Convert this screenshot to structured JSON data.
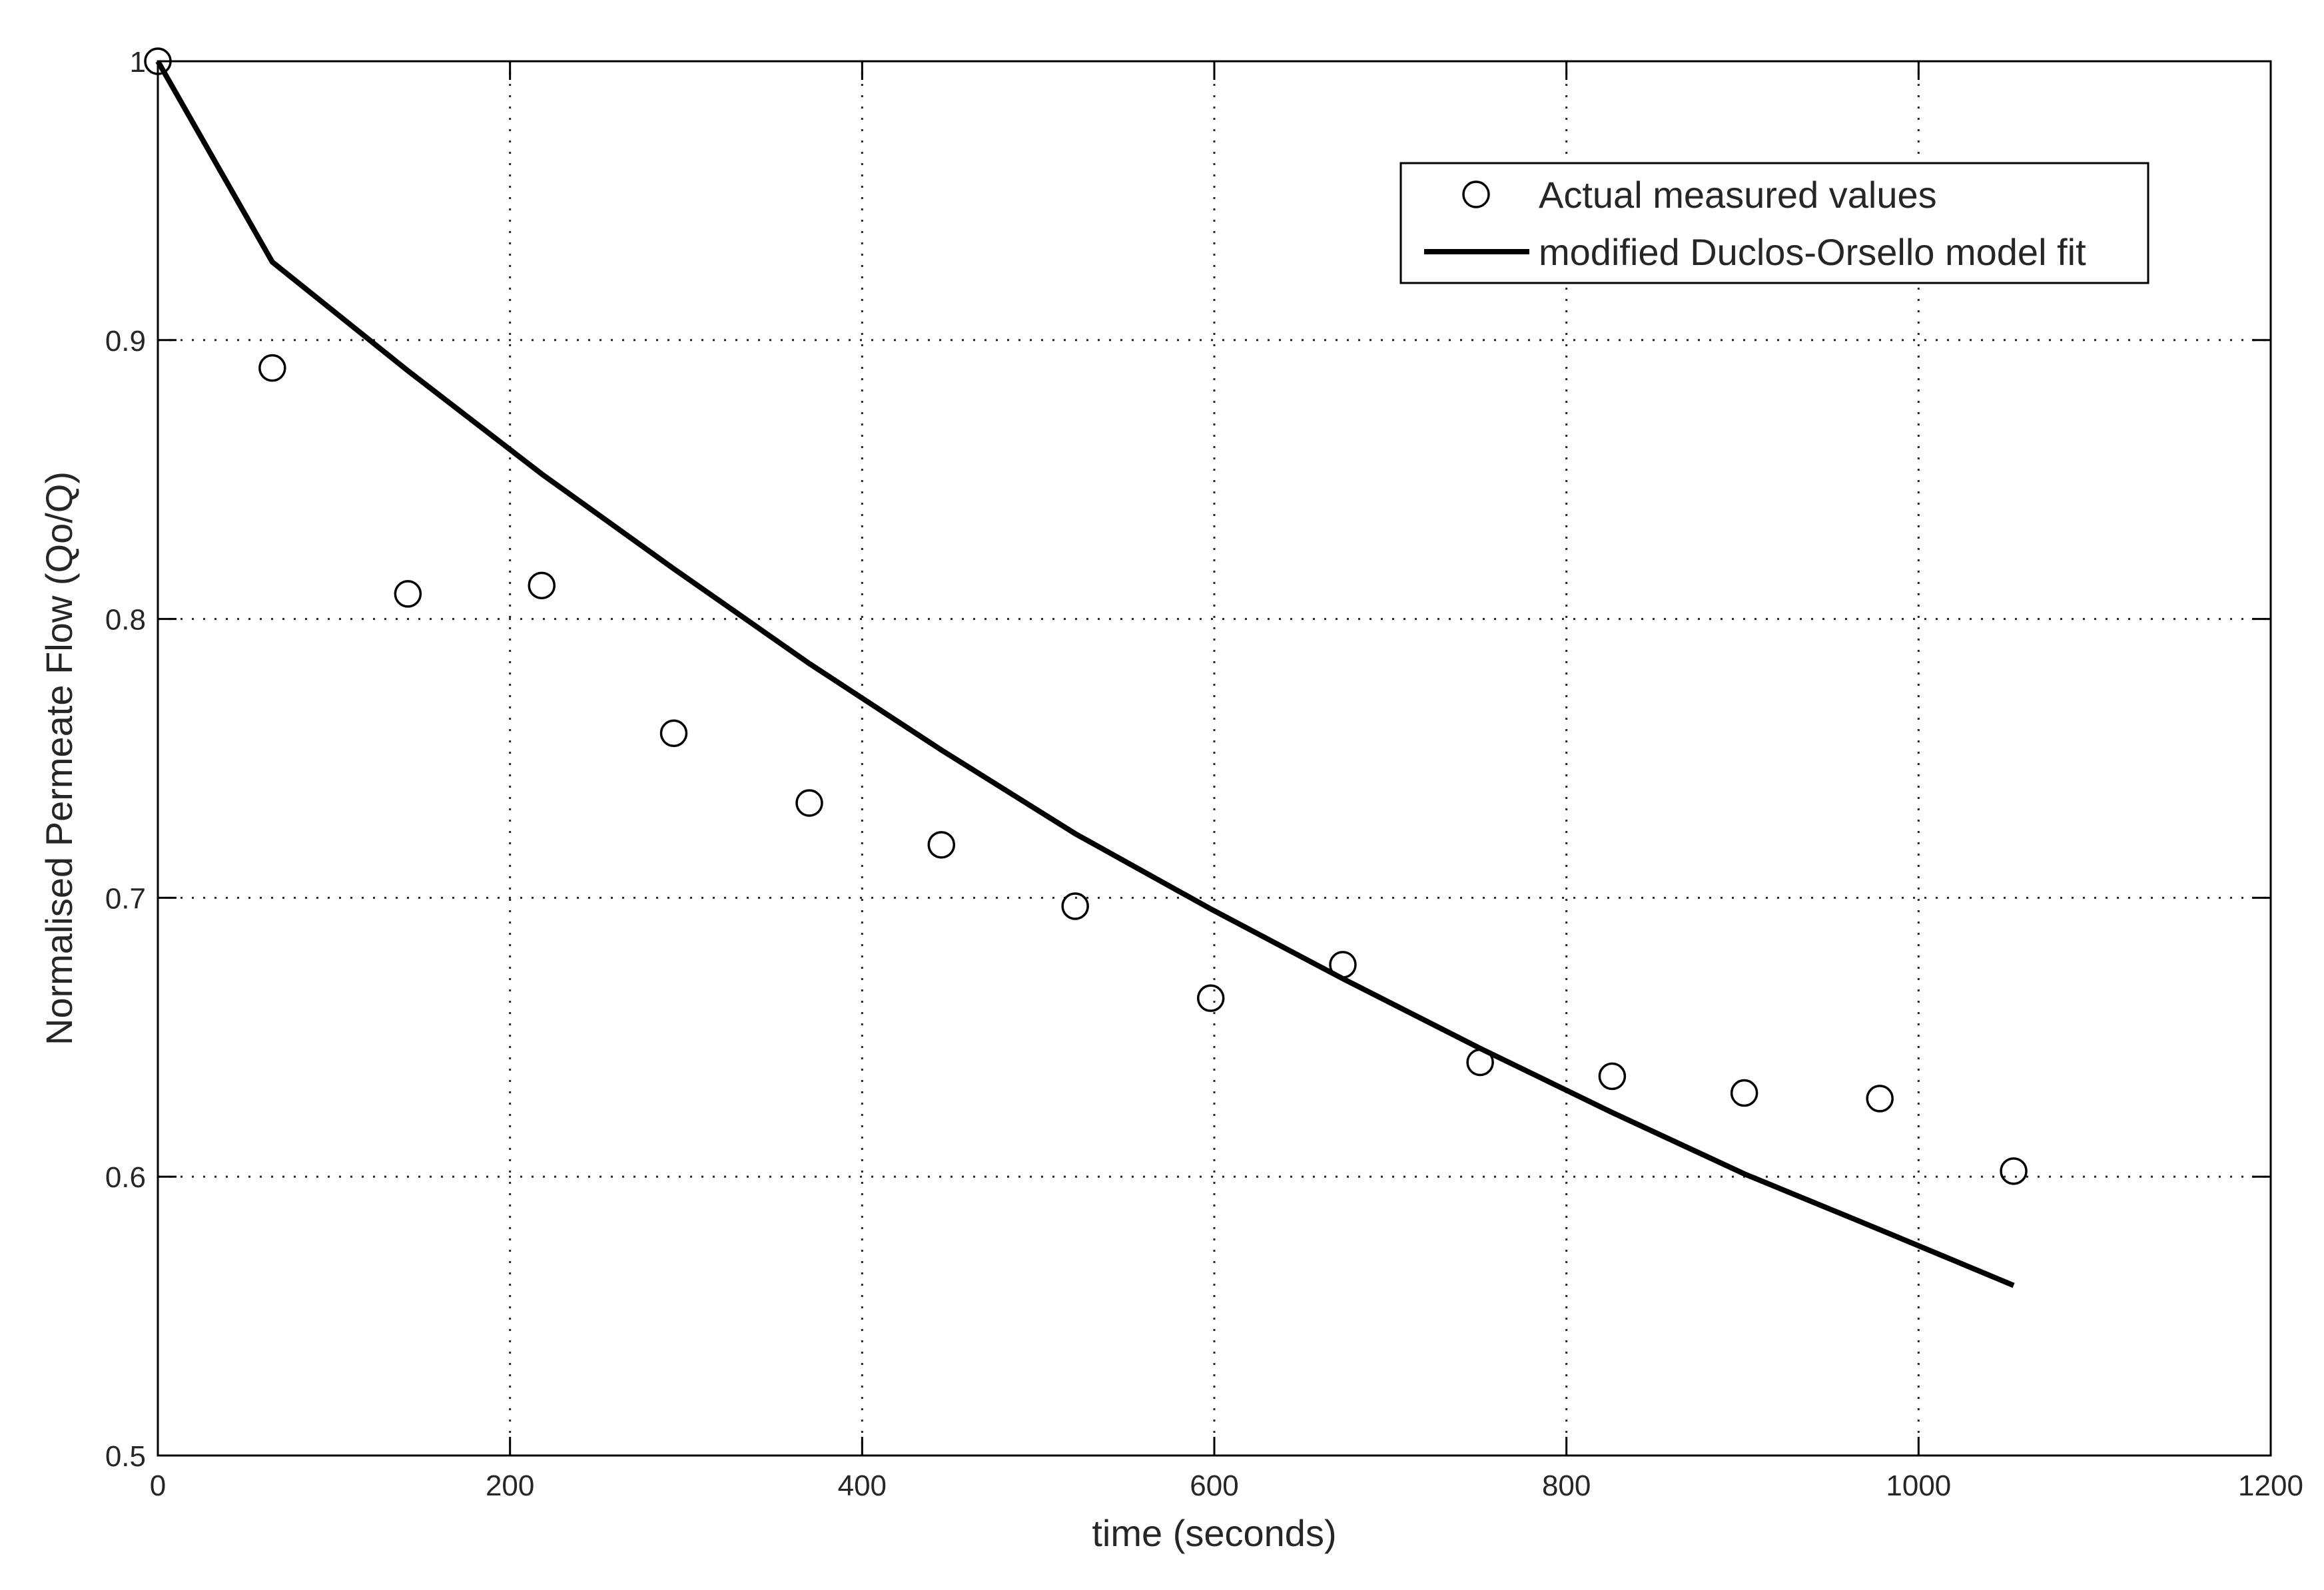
{
  "chart_data": {
    "type": "scatter",
    "title": "",
    "xlabel": "time (seconds)",
    "ylabel": "Normalised Permeate Flow (Qo/Q)",
    "xlim": [
      0,
      1200
    ],
    "ylim": [
      0.5,
      1.0
    ],
    "xticks": [
      0,
      200,
      400,
      600,
      800,
      1000,
      1200
    ],
    "yticks": [
      0.5,
      0.6,
      0.7,
      0.8,
      0.9,
      1.0
    ],
    "xtick_labels": [
      "0",
      "200",
      "400",
      "600",
      "800",
      "1000",
      "1200"
    ],
    "ytick_labels": [
      "0.5",
      "0.6",
      "0.7",
      "0.8",
      "0.9",
      "1"
    ],
    "grid": true,
    "legend_position": "top-right",
    "series": [
      {
        "name": "Actual measured values",
        "style": "circle-markers",
        "x": [
          0,
          65,
          142,
          218,
          293,
          370,
          445,
          521,
          598,
          673,
          751,
          826,
          901,
          978,
          1054
        ],
        "y": [
          1.0,
          0.89,
          0.809,
          0.812,
          0.759,
          0.734,
          0.719,
          0.697,
          0.664,
          0.676,
          0.641,
          0.636,
          0.63,
          0.628,
          0.602
        ]
      },
      {
        "name": "modified Duclos-Orsello model fit",
        "style": "solid-line",
        "x": [
          0,
          65,
          142,
          218,
          293,
          370,
          445,
          521,
          598,
          673,
          751,
          826,
          901,
          978,
          1054
        ],
        "y": [
          1.0,
          0.928,
          0.889,
          0.852,
          0.818,
          0.784,
          0.753,
          0.723,
          0.696,
          0.671,
          0.646,
          0.623,
          0.601,
          0.581,
          0.561
        ]
      }
    ]
  }
}
